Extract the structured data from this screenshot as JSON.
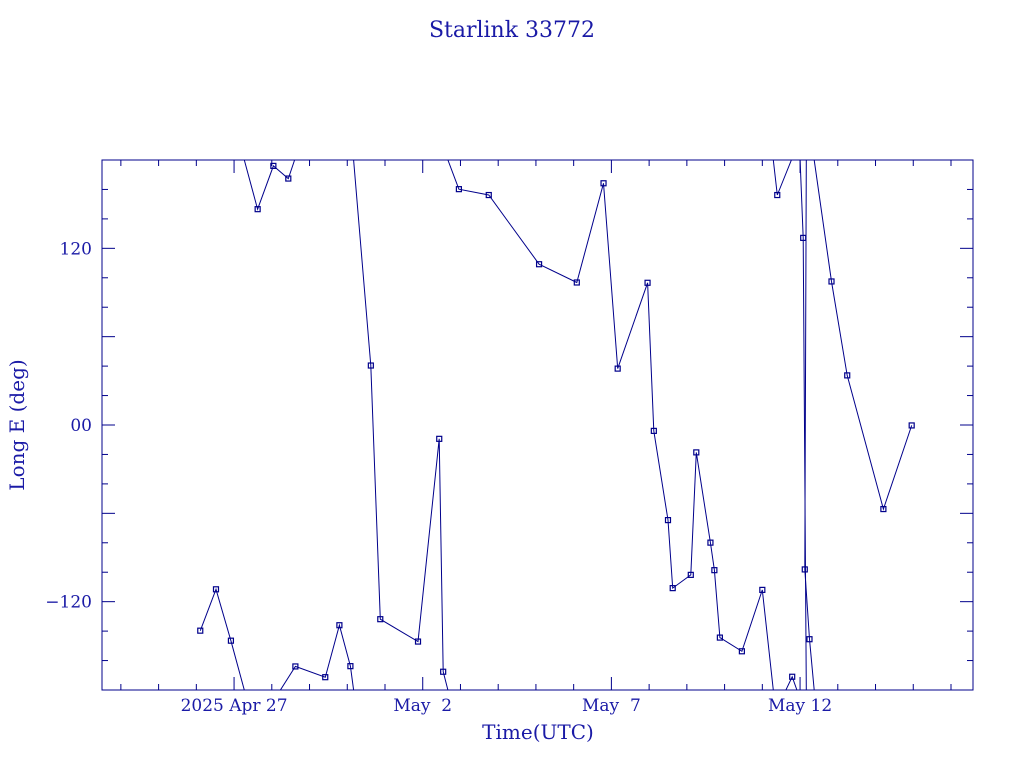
{
  "chart_data": {
    "type": "line",
    "title": "Starlink 33772",
    "xlabel": "Time(UTC)",
    "ylabel": "Long E (deg)",
    "x_axis": {
      "type": "date",
      "range": [
        "2025-04-23T12:00",
        "2025-05-16T14:00"
      ],
      "tick_labels": [
        {
          "label": "2025 Apr 27",
          "date": "2025-04-27"
        },
        {
          "label": "May  2",
          "date": "2025-05-02"
        },
        {
          "label": "May  7",
          "date": "2025-05-07"
        },
        {
          "label": "May 12",
          "date": "2025-05-12"
        }
      ]
    },
    "y_axis": {
      "range": [
        -180,
        180
      ],
      "ticks": [
        {
          "label": "−120",
          "value": -120
        },
        {
          "label": "00",
          "value": 0
        },
        {
          "label": "120",
          "value": 120
        }
      ]
    },
    "grid": false,
    "colors": {
      "ink": "#00008b",
      "text": "#1a1aa6"
    },
    "series": [
      {
        "points": [
          {
            "t": "2025-04-26T02:30",
            "lon": -139.7
          },
          {
            "t": "2025-04-26T12:30",
            "lon": -111.6
          },
          {
            "t": "2025-04-26T22:00",
            "lon": -146.5
          },
          {
            "t": "2025-04-27T06:30",
            "lon": -180.0,
            "cont": false
          },
          {
            "t": "2025-04-27T06:30",
            "lon": 180.0
          },
          {
            "t": "2025-04-27T15:00",
            "lon": 146.6
          },
          {
            "t": "2025-04-28T01:00",
            "lon": 176.0
          },
          {
            "t": "2025-04-28T10:30",
            "lon": 167.4
          },
          {
            "t": "2025-04-28T14:30",
            "lon": 180.0,
            "cont": false
          },
          {
            "t": "2025-04-28T05:30",
            "lon": -180.0
          },
          {
            "t": "2025-04-28T15:00",
            "lon": -164.0
          },
          {
            "t": "2025-04-29T10:00",
            "lon": -171.3
          },
          {
            "t": "2025-04-29T19:00",
            "lon": -136.0
          },
          {
            "t": "2025-04-30T02:00",
            "lon": -163.8
          },
          {
            "t": "2025-04-30T04:00",
            "lon": -180.0,
            "cont": false
          },
          {
            "t": "2025-04-30T04:00",
            "lon": 180.0
          },
          {
            "t": "2025-04-30T15:00",
            "lon": 40.4
          },
          {
            "t": "2025-04-30T21:00",
            "lon": -131.9
          },
          {
            "t": "2025-05-01T21:00",
            "lon": -147.1
          },
          {
            "t": "2025-05-02T10:30",
            "lon": -9.4
          },
          {
            "t": "2025-05-02T13:00",
            "lon": -167.6
          },
          {
            "t": "2025-05-02T16:00",
            "lon": -180.0,
            "cont": false
          },
          {
            "t": "2025-05-02T16:00",
            "lon": 180.0
          },
          {
            "t": "2025-05-02T23:00",
            "lon": 160.2
          },
          {
            "t": "2025-05-03T18:00",
            "lon": 156.2
          },
          {
            "t": "2025-05-05T02:00",
            "lon": 109.2
          },
          {
            "t": "2025-05-06T02:00",
            "lon": 96.8
          },
          {
            "t": "2025-05-06T19:00",
            "lon": 164.2
          },
          {
            "t": "2025-05-07T04:00",
            "lon": 38.3
          },
          {
            "t": "2025-05-07T23:00",
            "lon": 96.6
          },
          {
            "t": "2025-05-08T03:00",
            "lon": -4.0
          },
          {
            "t": "2025-05-08T12:00",
            "lon": -64.6
          },
          {
            "t": "2025-05-08T15:00",
            "lon": -110.8
          },
          {
            "t": "2025-05-09T02:30",
            "lon": -101.8
          },
          {
            "t": "2025-05-09T06:00",
            "lon": -18.6
          },
          {
            "t": "2025-05-09T15:00",
            "lon": -79.9
          },
          {
            "t": "2025-05-09T17:30",
            "lon": -98.6
          },
          {
            "t": "2025-05-09T21:00",
            "lon": -144.4
          },
          {
            "t": "2025-05-10T11:00",
            "lon": -153.7
          },
          {
            "t": "2025-05-11T00:00",
            "lon": -112.0
          },
          {
            "t": "2025-05-11T07:00",
            "lon": -180.0,
            "cont": false
          },
          {
            "t": "2025-05-11T07:00",
            "lon": 180.0
          },
          {
            "t": "2025-05-11T09:30",
            "lon": 156.2
          },
          {
            "t": "2025-05-11T18:30",
            "lon": 180.0,
            "cont": false
          },
          {
            "t": "2025-05-11T15:00",
            "lon": -180.0
          },
          {
            "t": "2025-05-11T19:00",
            "lon": -171.0
          },
          {
            "t": "2025-05-11T22:00",
            "lon": -180.0,
            "cont": false
          },
          {
            "t": "2025-05-12T00:00",
            "lon": 180.0
          },
          {
            "t": "2025-05-12T02:00",
            "lon": 127.1
          },
          {
            "t": "2025-05-12T04:00",
            "lon": -180.0,
            "cont": false
          },
          {
            "t": "2025-05-12T04:00",
            "lon": 180.0
          },
          {
            "t": "2025-05-12T03:00",
            "lon": -98.1
          },
          {
            "t": "2025-05-12T06:00",
            "lon": -145.5
          },
          {
            "t": "2025-05-12T09:00",
            "lon": -180.0,
            "cont": false
          },
          {
            "t": "2025-05-12T09:00",
            "lon": 180.0
          },
          {
            "t": "2025-05-12T20:00",
            "lon": 97.5
          },
          {
            "t": "2025-05-13T06:00",
            "lon": 33.7
          },
          {
            "t": "2025-05-14T05:00",
            "lon": -57.1
          },
          {
            "t": "2025-05-14T23:00",
            "lon": -0.3
          }
        ]
      }
    ]
  }
}
